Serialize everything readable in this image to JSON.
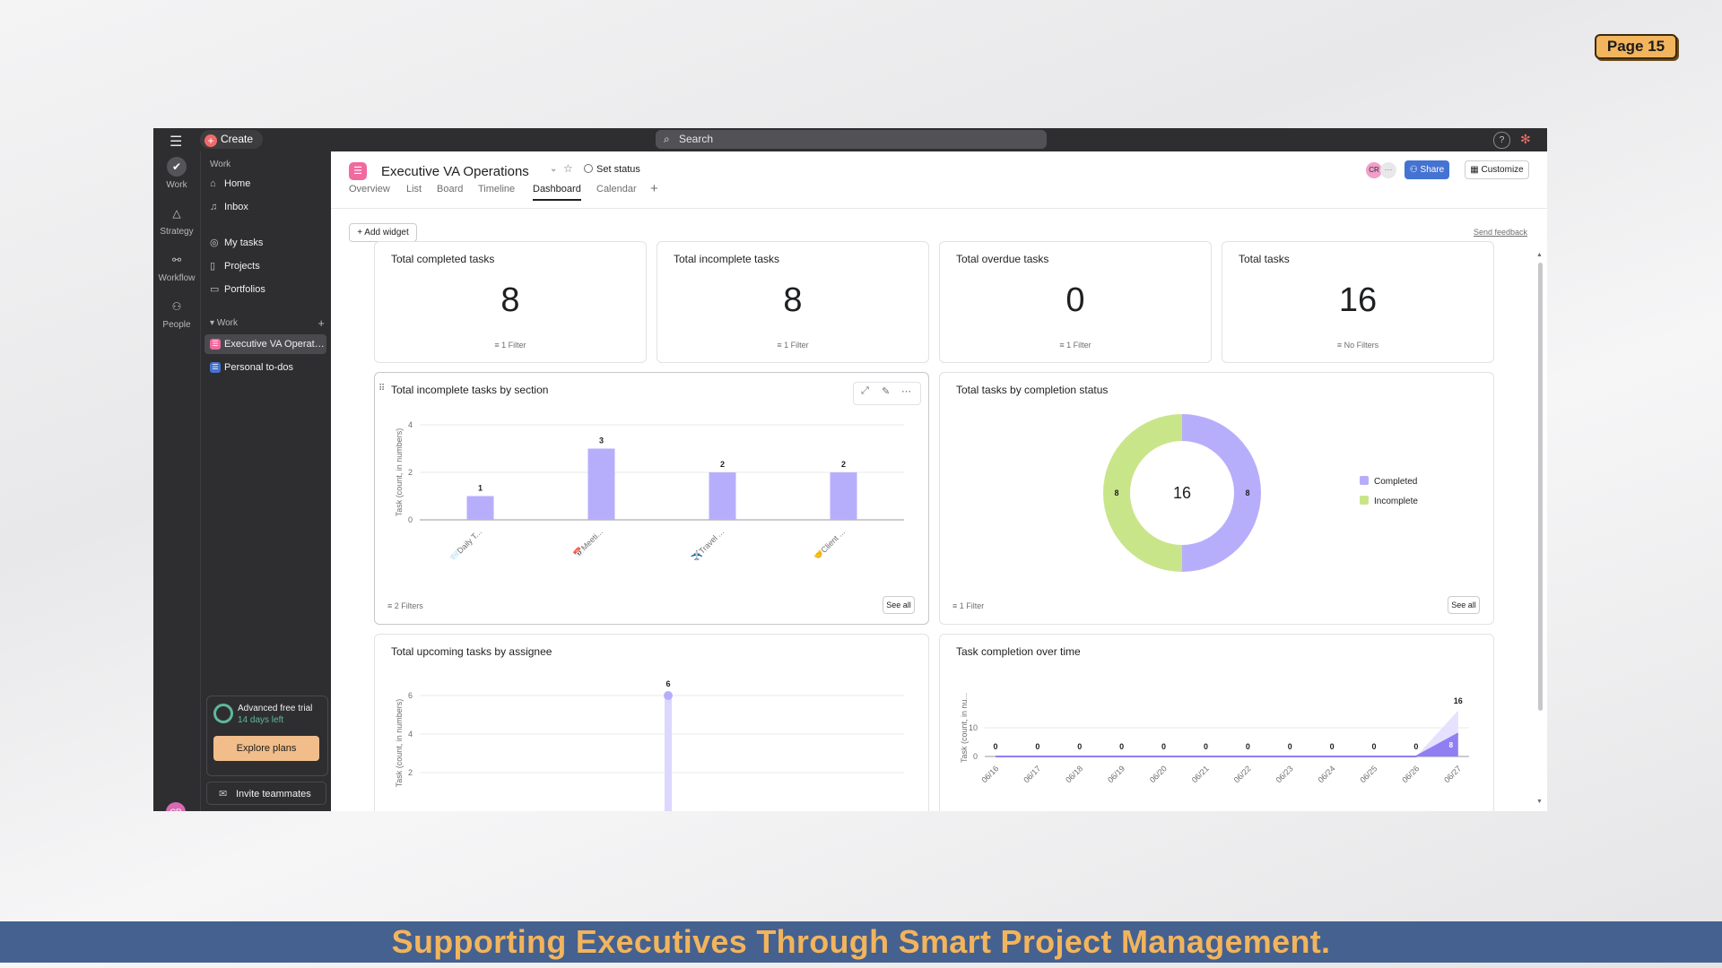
{
  "page_badge": "Page 15",
  "footer_text": "Supporting Executives Through Smart Project Management.",
  "topbar": {
    "create_label": "Create",
    "search_placeholder": "Search"
  },
  "rail": [
    "Work",
    "Strategy",
    "Workflow",
    "People"
  ],
  "user_initials": "CR",
  "sidebar": {
    "heading": "Work",
    "items": [
      "Home",
      "Inbox",
      "My tasks",
      "Projects",
      "Portfolios"
    ],
    "section_label": "Work",
    "projects": [
      "Executive VA Operations",
      "Personal to-dos"
    ],
    "trial_title": "Advanced free trial",
    "trial_days": "14 days left",
    "explore_label": "Explore plans",
    "invite_label": "Invite teammates"
  },
  "header": {
    "project_title": "Executive VA Operations",
    "set_status": "Set status",
    "share_label": "Share",
    "customize_label": "Customize",
    "tabs": [
      "Overview",
      "List",
      "Board",
      "Timeline",
      "Dashboard",
      "Calendar"
    ],
    "add_widget": "Add widget",
    "send_feedback": "Send feedback"
  },
  "stats": [
    {
      "title": "Total completed tasks",
      "value": "8",
      "filter": "1 Filter"
    },
    {
      "title": "Total incomplete tasks",
      "value": "8",
      "filter": "1 Filter"
    },
    {
      "title": "Total overdue tasks",
      "value": "0",
      "filter": "1 Filter"
    },
    {
      "title": "Total tasks",
      "value": "16",
      "filter": "No Filters"
    }
  ],
  "widgets": {
    "bar_title": "Total incomplete tasks by section",
    "bar_filter": "2 Filters",
    "donut_title": "Total tasks by completion status",
    "donut_filter": "1 Filter",
    "see_all": "See all",
    "assignee_title": "Total upcoming tasks by assignee",
    "time_title": "Task completion over time"
  },
  "colors": {
    "purple": "#b7aefb",
    "green": "#c9e58a",
    "accent_purple": "#8f7ff2"
  },
  "chart_data": [
    {
      "type": "bar",
      "title": "Total incomplete tasks by section",
      "ylabel": "Task (count, in numbers)",
      "categories": [
        "📨Daily T...",
        "📅Meeti...",
        "✈️Travel ...",
        "🤝Client ..."
      ],
      "values": [
        1,
        3,
        2,
        2
      ],
      "yticks": [
        0,
        2,
        4
      ],
      "ylim": [
        0,
        4
      ]
    },
    {
      "type": "pie",
      "title": "Total tasks by completion status",
      "center_label": "16",
      "labels": [
        "Completed",
        "Incomplete"
      ],
      "values": [
        8,
        8
      ]
    },
    {
      "type": "line",
      "title": "Total upcoming tasks by assignee",
      "ylabel": "Task (count, in numbers)",
      "yticks": [
        2,
        4,
        6
      ],
      "peak_value": 6
    },
    {
      "type": "area",
      "title": "Task completion over time",
      "ylabel": "Task (count, in nu...",
      "x": [
        "06/16",
        "06/17",
        "06/18",
        "06/19",
        "06/20",
        "06/21",
        "06/22",
        "06/23",
        "06/24",
        "06/25",
        "06/26",
        "06/27"
      ],
      "series": [
        {
          "values": [
            0,
            0,
            0,
            0,
            0,
            0,
            0,
            0,
            0,
            0,
            0,
            8
          ]
        },
        {
          "values": [
            0,
            0,
            0,
            0,
            0,
            0,
            0,
            0,
            0,
            0,
            0,
            16
          ]
        }
      ],
      "point_labels": [
        "0",
        "0",
        "0",
        "0",
        "0",
        "0",
        "0",
        "0",
        "0",
        "0",
        "0",
        "16"
      ],
      "inner_label": "8",
      "yticks": [
        0,
        10
      ],
      "ylim": [
        0,
        20
      ]
    }
  ]
}
